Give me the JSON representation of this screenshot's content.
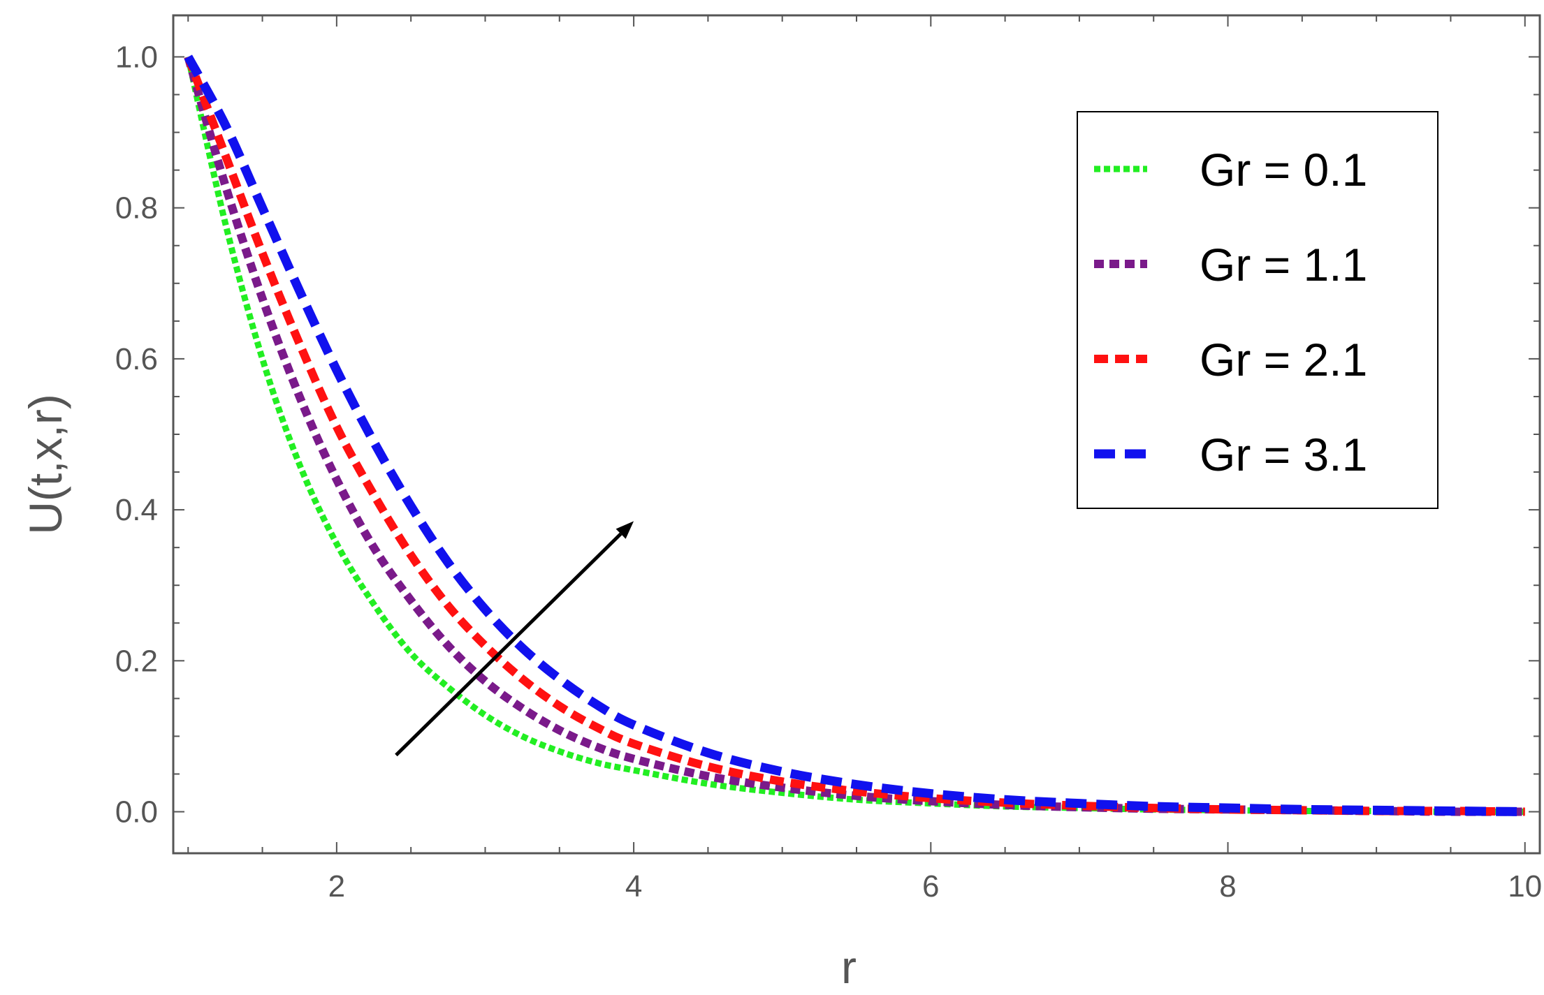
{
  "chart_data": {
    "type": "line",
    "title": "",
    "xlabel": "r",
    "ylabel": "U(t,x,r)",
    "xlim": [
      0.9,
      10.1
    ],
    "ylim": [
      -0.055,
      1.055
    ],
    "x_ticks": [
      "2",
      "4",
      "6",
      "8",
      "10"
    ],
    "y_ticks": [
      "0.0",
      "0.2",
      "0.4",
      "0.6",
      "0.8",
      "1.0"
    ],
    "grid": false,
    "legend_position": "top-right",
    "x": [
      1.0,
      1.25,
      1.5,
      1.75,
      2.0,
      2.25,
      2.5,
      2.75,
      3.0,
      3.25,
      3.5,
      3.75,
      4.0,
      4.5,
      5.0,
      5.5,
      6.0,
      6.5,
      7.0,
      7.5,
      8.0,
      8.5,
      9.0,
      9.5,
      10.0
    ],
    "series": [
      {
        "name": "Gr = 0.1",
        "color": "#22ee22",
        "dash": "dotted",
        "values": [
          1.0,
          0.78,
          0.6,
          0.46,
          0.355,
          0.275,
          0.21,
          0.165,
          0.128,
          0.1,
          0.08,
          0.065,
          0.055,
          0.037,
          0.025,
          0.016,
          0.011,
          0.007,
          0.005,
          0.003,
          0.002,
          0.001,
          0.001,
          0.0,
          0.0
        ]
      },
      {
        "name": "Gr = 1.1",
        "color": "#7a1a8a",
        "dash": "short-dash",
        "values": [
          1.0,
          0.83,
          0.68,
          0.55,
          0.44,
          0.35,
          0.28,
          0.22,
          0.173,
          0.137,
          0.108,
          0.086,
          0.07,
          0.047,
          0.032,
          0.021,
          0.014,
          0.009,
          0.006,
          0.004,
          0.003,
          0.002,
          0.001,
          0.0,
          0.0
        ]
      },
      {
        "name": "Gr = 2.1",
        "color": "#ff1111",
        "dash": "medium-dash",
        "values": [
          1.0,
          0.87,
          0.74,
          0.62,
          0.51,
          0.42,
          0.34,
          0.273,
          0.22,
          0.176,
          0.14,
          0.112,
          0.09,
          0.06,
          0.04,
          0.027,
          0.018,
          0.012,
          0.008,
          0.005,
          0.003,
          0.002,
          0.001,
          0.001,
          0.0
        ]
      },
      {
        "name": "Gr = 3.1",
        "color": "#1111ee",
        "dash": "long-dash",
        "values": [
          1.0,
          0.91,
          0.8,
          0.69,
          0.585,
          0.49,
          0.405,
          0.33,
          0.268,
          0.217,
          0.176,
          0.142,
          0.115,
          0.078,
          0.053,
          0.036,
          0.024,
          0.016,
          0.011,
          0.007,
          0.005,
          0.003,
          0.002,
          0.001,
          0.0
        ]
      }
    ],
    "annotations": [
      {
        "type": "arrow",
        "from": [
          2.4,
          0.075
        ],
        "to": [
          4.0,
          0.385
        ],
        "color": "#000000"
      }
    ]
  }
}
